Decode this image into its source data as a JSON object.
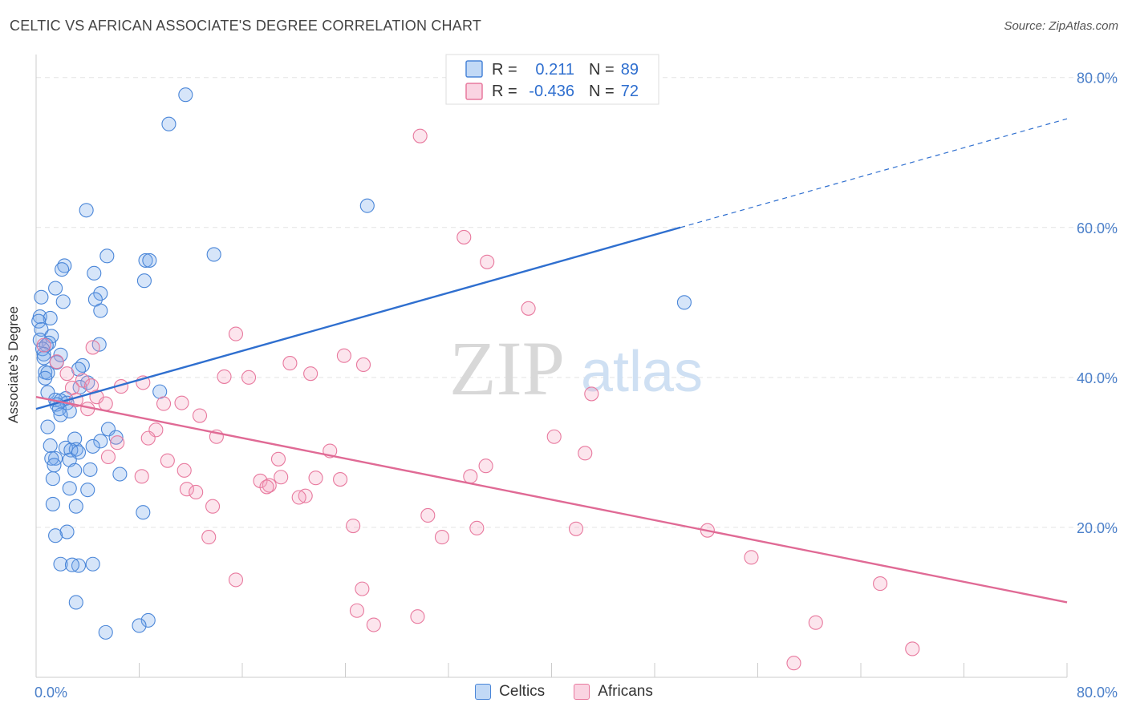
{
  "title": "CELTIC VS AFRICAN ASSOCIATE'S DEGREE CORRELATION CHART",
  "source": "Source: ZipAtlas.com",
  "watermark": {
    "zip": "ZIP",
    "atlas": "atlas"
  },
  "colors": {
    "celtics": "#4a86d8",
    "celtics_fill": "rgba(120,170,235,0.30)",
    "celtics_line": "#2f6fcf",
    "africans": "#e8799e",
    "africans_fill": "rgba(245,160,190,0.28)",
    "africans_line": "#e06a95",
    "axis_text": "#4a7fc9"
  },
  "legend": {
    "rows": [
      {
        "r_label": "R =",
        "r_value": "0.211",
        "n_label": "N =",
        "n_value": "89"
      },
      {
        "r_label": "R =",
        "r_value": "-0.436",
        "n_label": "N =",
        "n_value": "72"
      }
    ]
  },
  "bottom_legend": {
    "celtics": "Celtics",
    "africans": "Africans"
  },
  "chart_data": {
    "type": "scatter",
    "title": "CELTIC VS AFRICAN ASSOCIATE'S DEGREE CORRELATION CHART",
    "xlabel": "",
    "ylabel": "Associate's Degree",
    "xlim": [
      0,
      80
    ],
    "ylim": [
      0,
      82
    ],
    "x_tick_labels": [
      "0.0%",
      "80.0%"
    ],
    "y_ticks": [
      20,
      40,
      60,
      80
    ],
    "y_tick_labels": [
      "20.0%",
      "40.0%",
      "60.0%",
      "80.0%"
    ],
    "grid": "horizontal dashed",
    "legend_position": "top-center",
    "series": [
      {
        "name": "Celtics",
        "r": 0.211,
        "n": 89,
        "trend": {
          "x0": 0,
          "y0": 35.8,
          "x1": 50,
          "y1": 60.0,
          "dashed_to_x": 80,
          "dashed_to_y": 74.5
        },
        "points": [
          [
            11.6,
            77.7
          ],
          [
            10.3,
            73.8
          ],
          [
            25.7,
            62.9
          ],
          [
            3.9,
            62.3
          ],
          [
            13.8,
            56.4
          ],
          [
            5.5,
            56.2
          ],
          [
            8.5,
            55.6
          ],
          [
            8.8,
            55.6
          ],
          [
            2.2,
            54.9
          ],
          [
            2.0,
            54.4
          ],
          [
            4.5,
            53.9
          ],
          [
            8.4,
            52.9
          ],
          [
            1.5,
            51.9
          ],
          [
            5.0,
            51.2
          ],
          [
            0.4,
            50.7
          ],
          [
            2.1,
            50.1
          ],
          [
            4.6,
            50.4
          ],
          [
            50.3,
            50.0
          ],
          [
            5.0,
            48.9
          ],
          [
            0.3,
            48.1
          ],
          [
            1.1,
            47.9
          ],
          [
            0.2,
            47.5
          ],
          [
            0.4,
            46.4
          ],
          [
            1.2,
            45.5
          ],
          [
            0.3,
            45.0
          ],
          [
            1.0,
            44.6
          ],
          [
            0.8,
            44.3
          ],
          [
            4.9,
            44.4
          ],
          [
            0.5,
            43.8
          ],
          [
            0.6,
            43.1
          ],
          [
            1.9,
            43.0
          ],
          [
            0.6,
            42.6
          ],
          [
            1.6,
            42.0
          ],
          [
            3.6,
            41.6
          ],
          [
            3.3,
            41.1
          ],
          [
            0.7,
            40.7
          ],
          [
            0.9,
            40.6
          ],
          [
            0.7,
            39.9
          ],
          [
            4.0,
            39.3
          ],
          [
            3.4,
            38.7
          ],
          [
            9.6,
            38.1
          ],
          [
            0.9,
            38.0
          ],
          [
            2.3,
            37.2
          ],
          [
            1.5,
            37.0
          ],
          [
            1.9,
            36.9
          ],
          [
            2.4,
            36.6
          ],
          [
            1.6,
            36.4
          ],
          [
            1.8,
            35.8
          ],
          [
            2.6,
            35.5
          ],
          [
            1.9,
            35.0
          ],
          [
            0.9,
            33.4
          ],
          [
            5.6,
            33.1
          ],
          [
            3.0,
            31.8
          ],
          [
            6.2,
            32.0
          ],
          [
            5.0,
            31.5
          ],
          [
            1.1,
            30.9
          ],
          [
            4.4,
            30.8
          ],
          [
            2.3,
            30.6
          ],
          [
            3.1,
            30.4
          ],
          [
            2.7,
            30.3
          ],
          [
            3.3,
            30.0
          ],
          [
            1.5,
            29.2
          ],
          [
            1.2,
            29.2
          ],
          [
            2.6,
            29.0
          ],
          [
            1.4,
            28.3
          ],
          [
            3.0,
            27.6
          ],
          [
            4.2,
            27.7
          ],
          [
            6.5,
            27.1
          ],
          [
            1.3,
            26.5
          ],
          [
            2.6,
            25.2
          ],
          [
            4.0,
            25.0
          ],
          [
            1.3,
            23.1
          ],
          [
            3.1,
            22.8
          ],
          [
            8.3,
            22.0
          ],
          [
            2.4,
            19.4
          ],
          [
            1.5,
            18.9
          ],
          [
            1.9,
            15.1
          ],
          [
            3.3,
            14.9
          ],
          [
            4.4,
            15.1
          ],
          [
            2.8,
            15.0
          ],
          [
            3.1,
            10.0
          ],
          [
            8.7,
            7.6
          ],
          [
            8.0,
            6.9
          ],
          [
            5.4,
            6.0
          ]
        ]
      },
      {
        "name": "Africans",
        "r": -0.436,
        "n": 72,
        "trend": {
          "x0": 0,
          "y0": 37.4,
          "x1": 80,
          "y1": 10.0
        },
        "points": [
          [
            29.8,
            72.2
          ],
          [
            33.2,
            58.7
          ],
          [
            35.0,
            55.4
          ],
          [
            38.2,
            49.2
          ],
          [
            15.5,
            45.8
          ],
          [
            0.6,
            44.3
          ],
          [
            4.4,
            44.0
          ],
          [
            23.9,
            42.9
          ],
          [
            19.7,
            41.9
          ],
          [
            25.4,
            41.7
          ],
          [
            1.6,
            42.1
          ],
          [
            2.4,
            40.5
          ],
          [
            21.3,
            40.5
          ],
          [
            14.6,
            40.1
          ],
          [
            16.5,
            40.0
          ],
          [
            3.6,
            39.6
          ],
          [
            8.3,
            39.3
          ],
          [
            6.6,
            38.8
          ],
          [
            2.8,
            38.6
          ],
          [
            4.3,
            38.9
          ],
          [
            43.1,
            37.8
          ],
          [
            4.7,
            37.4
          ],
          [
            3.1,
            37.0
          ],
          [
            11.3,
            36.6
          ],
          [
            9.9,
            36.5
          ],
          [
            5.4,
            36.5
          ],
          [
            4.0,
            35.8
          ],
          [
            12.7,
            34.9
          ],
          [
            9.3,
            33.0
          ],
          [
            40.2,
            32.1
          ],
          [
            14.0,
            32.1
          ],
          [
            8.7,
            31.9
          ],
          [
            6.3,
            31.3
          ],
          [
            22.8,
            30.2
          ],
          [
            42.6,
            29.9
          ],
          [
            18.8,
            29.1
          ],
          [
            10.2,
            28.9
          ],
          [
            5.6,
            29.4
          ],
          [
            34.9,
            28.2
          ],
          [
            11.5,
            27.6
          ],
          [
            8.2,
            26.8
          ],
          [
            19.0,
            26.7
          ],
          [
            21.7,
            26.6
          ],
          [
            33.7,
            26.8
          ],
          [
            23.6,
            26.4
          ],
          [
            17.4,
            26.2
          ],
          [
            18.1,
            25.6
          ],
          [
            17.9,
            25.4
          ],
          [
            11.7,
            25.1
          ],
          [
            12.4,
            24.7
          ],
          [
            20.9,
            24.2
          ],
          [
            20.4,
            24.0
          ],
          [
            13.7,
            22.8
          ],
          [
            30.4,
            21.6
          ],
          [
            24.6,
            20.2
          ],
          [
            34.2,
            19.9
          ],
          [
            41.9,
            19.8
          ],
          [
            52.1,
            19.6
          ],
          [
            31.5,
            18.7
          ],
          [
            13.4,
            18.7
          ],
          [
            55.5,
            16.0
          ],
          [
            15.5,
            13.0
          ],
          [
            65.5,
            12.5
          ],
          [
            25.3,
            11.8
          ],
          [
            24.9,
            8.9
          ],
          [
            60.5,
            7.3
          ],
          [
            26.2,
            7.0
          ],
          [
            29.6,
            8.1
          ],
          [
            68.0,
            3.8
          ],
          [
            58.8,
            1.9
          ]
        ]
      }
    ]
  }
}
